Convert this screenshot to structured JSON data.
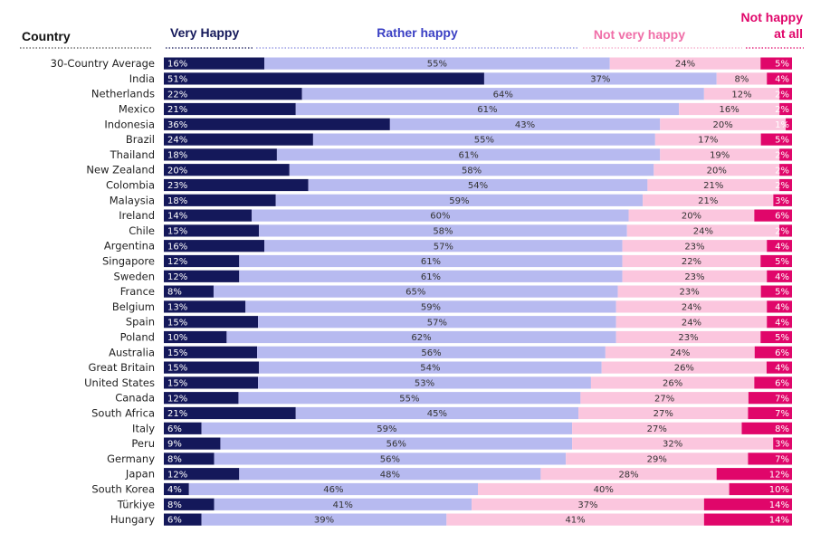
{
  "chart_data": {
    "type": "bar",
    "orientation": "horizontal",
    "stacked": true,
    "header": {
      "country": "Country",
      "very_happy": "Very Happy",
      "rather_happy": "Rather happy",
      "not_very_happy": "Not very happy",
      "not_happy_line1": "Not happy",
      "not_happy_line2": "at all"
    },
    "series": [
      {
        "name": "Very Happy",
        "color": "#14185a",
        "text_color": "#ffffff"
      },
      {
        "name": "Rather happy",
        "color": "#b7baf0",
        "text_color": "#333333"
      },
      {
        "name": "Not very happy",
        "color": "#fbc6de",
        "text_color": "#333333"
      },
      {
        "name": "Not happy at all",
        "color": "#e0066a",
        "text_color": "#ffffff"
      }
    ],
    "categories": [
      "30-Country Average",
      "India",
      "Netherlands",
      "Mexico",
      "Indonesia",
      "Brazil",
      "Thailand",
      "New Zealand",
      "Colombia",
      "Malaysia",
      "Ireland",
      "Chile",
      "Argentina",
      "Singapore",
      "Sweden",
      "France",
      "Belgium",
      "Spain",
      "Poland",
      "Australia",
      "Great Britain",
      "United States",
      "Canada",
      "South Africa",
      "Italy",
      "Peru",
      "Germany",
      "Japan",
      "South Korea",
      "Türkiye",
      "Hungary"
    ],
    "values": [
      [
        16,
        55,
        24,
        5
      ],
      [
        51,
        37,
        8,
        4
      ],
      [
        22,
        64,
        12,
        2
      ],
      [
        21,
        61,
        16,
        2
      ],
      [
        36,
        43,
        20,
        1
      ],
      [
        24,
        55,
        17,
        5
      ],
      [
        18,
        61,
        19,
        2
      ],
      [
        20,
        58,
        20,
        2
      ],
      [
        23,
        54,
        21,
        2
      ],
      [
        18,
        59,
        21,
        3
      ],
      [
        14,
        60,
        20,
        6
      ],
      [
        15,
        58,
        24,
        2
      ],
      [
        16,
        57,
        23,
        4
      ],
      [
        12,
        61,
        22,
        5
      ],
      [
        12,
        61,
        23,
        4
      ],
      [
        8,
        65,
        23,
        5
      ],
      [
        13,
        59,
        24,
        4
      ],
      [
        15,
        57,
        24,
        4
      ],
      [
        10,
        62,
        23,
        5
      ],
      [
        15,
        56,
        24,
        6
      ],
      [
        15,
        54,
        26,
        4
      ],
      [
        15,
        53,
        26,
        6
      ],
      [
        12,
        55,
        27,
        7
      ],
      [
        21,
        45,
        27,
        7
      ],
      [
        6,
        59,
        27,
        8
      ],
      [
        9,
        56,
        32,
        3
      ],
      [
        8,
        56,
        29,
        7
      ],
      [
        12,
        48,
        28,
        12
      ],
      [
        4,
        46,
        40,
        10
      ],
      [
        8,
        41,
        37,
        14
      ],
      [
        6,
        39,
        41,
        14
      ]
    ],
    "value_suffix": "%",
    "xlim": [
      0,
      100
    ]
  }
}
